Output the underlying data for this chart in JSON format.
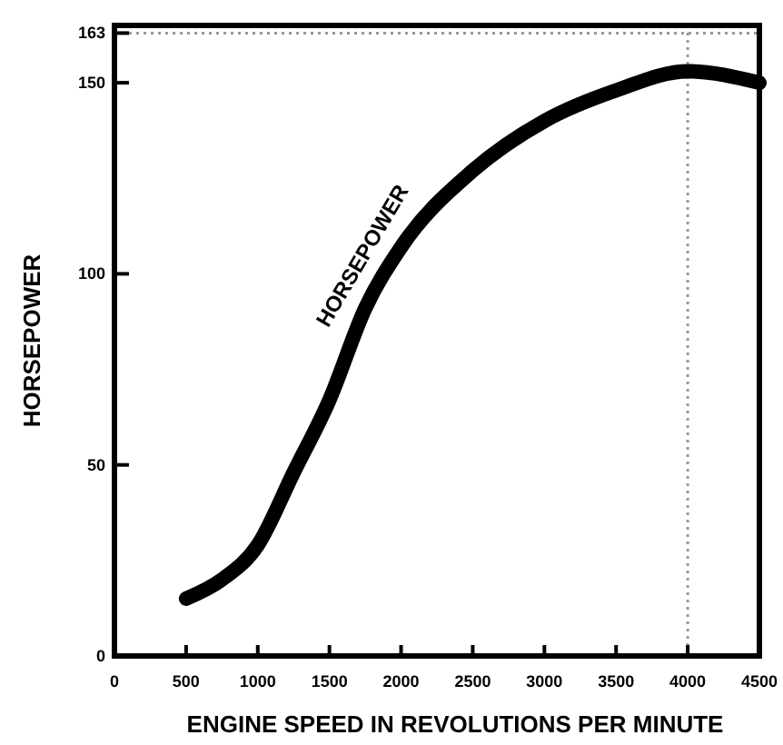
{
  "chart_data": {
    "type": "line",
    "xlabel": "ENGINE SPEED IN REVOLUTIONS PER MINUTE",
    "ylabel": "HORSEPOWER",
    "x": [
      500,
      750,
      1000,
      1250,
      1500,
      1750,
      2000,
      2500,
      3000,
      3500,
      4000,
      4500
    ],
    "series": [
      {
        "name": "HORSEPOWER",
        "color": "#000000",
        "values": [
          15,
          20,
          29,
          48,
          67,
          91,
          107,
          127,
          140,
          148,
          153,
          150
        ]
      }
    ],
    "xlim": [
      0,
      4500
    ],
    "xticks": [
      0,
      500,
      1000,
      1500,
      2000,
      2500,
      3000,
      3500,
      4000,
      4500
    ],
    "ylim": [
      0,
      165
    ],
    "yticks": [
      0,
      50,
      100,
      150,
      {
        "value": 163,
        "label": "163"
      }
    ],
    "ref_lines": [
      {
        "axis": "y",
        "value": 163,
        "color": "#999999",
        "line_style": "dotted"
      },
      {
        "axis": "x",
        "value": 4000,
        "color": "#999999",
        "line_style": "dotted"
      }
    ],
    "grid": false,
    "marker": "none",
    "line_style": "solid"
  }
}
